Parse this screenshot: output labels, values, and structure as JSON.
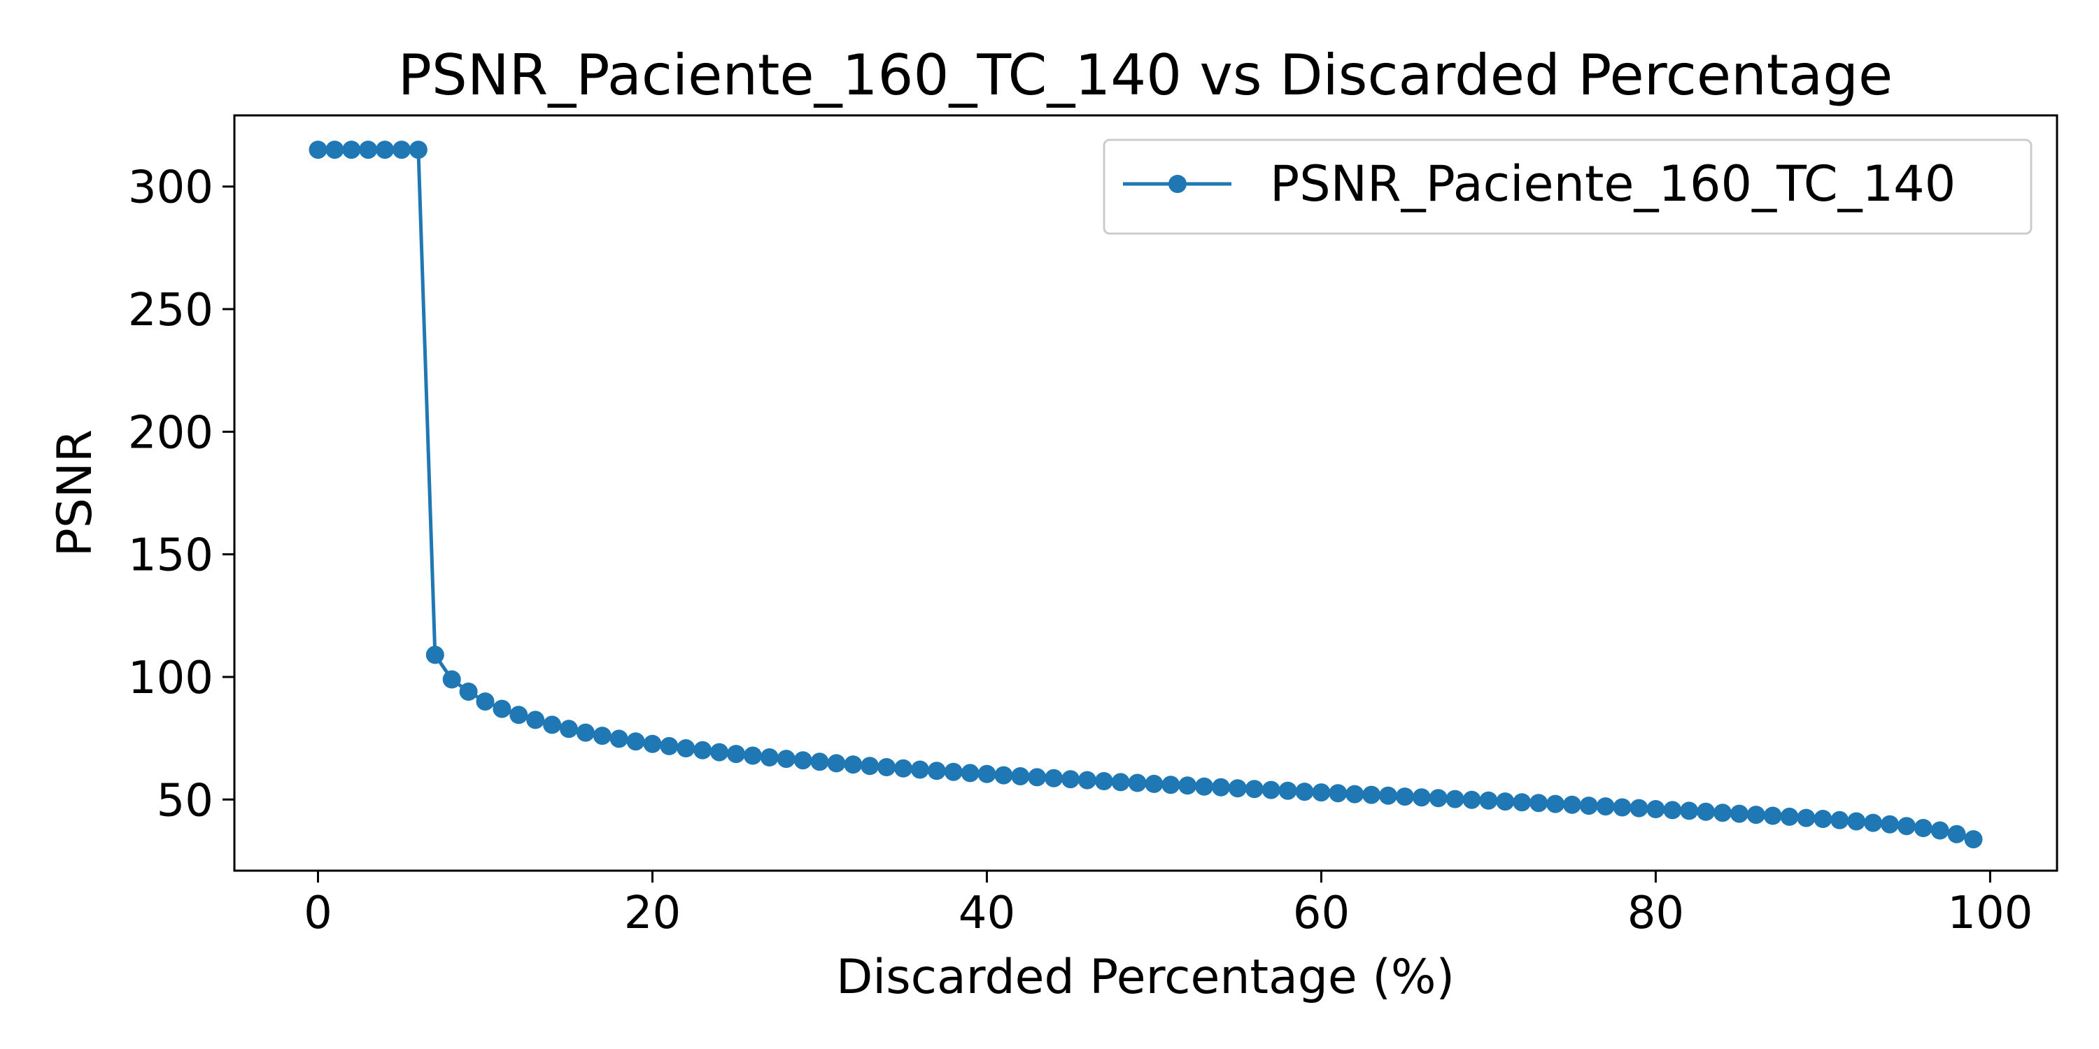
{
  "chart_data": {
    "type": "line",
    "title": "PSNR_Paciente_160_TC_140 vs Discarded Percentage",
    "xlabel": "Discarded Percentage (%)",
    "ylabel": "PSNR",
    "xlim": [
      -5,
      104
    ],
    "ylim": [
      21,
      329
    ],
    "xticks": [
      0,
      20,
      40,
      60,
      80,
      100
    ],
    "yticks": [
      50,
      100,
      150,
      200,
      250,
      300
    ],
    "grid": false,
    "legend_position": "top-right",
    "colors": {
      "series": "#1f77b4",
      "axes": "#000000",
      "legend_border": "#cccccc"
    },
    "series": [
      {
        "name": "PSNR_Paciente_160_TC_140",
        "marker": "circle",
        "x": [
          0,
          1,
          2,
          3,
          4,
          5,
          6,
          7,
          8,
          9,
          10,
          11,
          12,
          13,
          14,
          15,
          16,
          17,
          18,
          19,
          20,
          21,
          22,
          23,
          24,
          25,
          26,
          27,
          28,
          29,
          30,
          31,
          32,
          33,
          34,
          35,
          36,
          37,
          38,
          39,
          40,
          41,
          42,
          43,
          44,
          45,
          46,
          47,
          48,
          49,
          50,
          51,
          52,
          53,
          54,
          55,
          56,
          57,
          58,
          59,
          60,
          61,
          62,
          63,
          64,
          65,
          66,
          67,
          68,
          69,
          70,
          71,
          72,
          73,
          74,
          75,
          76,
          77,
          78,
          79,
          80,
          81,
          82,
          83,
          84,
          85,
          86,
          87,
          88,
          89,
          90,
          91,
          92,
          93,
          94,
          95,
          96,
          97,
          98,
          99
        ],
        "values": [
          315,
          315,
          315,
          315,
          315,
          315,
          315,
          109,
          99,
          94,
          90,
          87,
          84.5,
          82.5,
          80.5,
          78.8,
          77.3,
          76,
          74.8,
          73.7,
          72.7,
          71.8,
          70.9,
          70.1,
          69.3,
          68.6,
          67.9,
          67.2,
          66.6,
          66,
          65.4,
          64.8,
          64.3,
          63.7,
          63.2,
          62.7,
          62.2,
          61.7,
          61.3,
          60.8,
          60.4,
          59.9,
          59.5,
          59.1,
          58.7,
          58.3,
          57.9,
          57.5,
          57.1,
          56.8,
          56.4,
          56,
          55.7,
          55.3,
          55,
          54.6,
          54.3,
          53.9,
          53.6,
          53.2,
          52.9,
          52.6,
          52.2,
          51.9,
          51.6,
          51.2,
          50.9,
          50.6,
          50.2,
          49.9,
          49.6,
          49.2,
          48.9,
          48.6,
          48.2,
          47.9,
          47.5,
          47.2,
          46.8,
          46.5,
          46.1,
          45.7,
          45.4,
          45,
          44.6,
          44.2,
          43.8,
          43.4,
          43,
          42.5,
          42.1,
          41.6,
          41.1,
          40.5,
          39.9,
          39.2,
          38.4,
          37.4,
          35.9,
          33.8
        ]
      }
    ]
  }
}
